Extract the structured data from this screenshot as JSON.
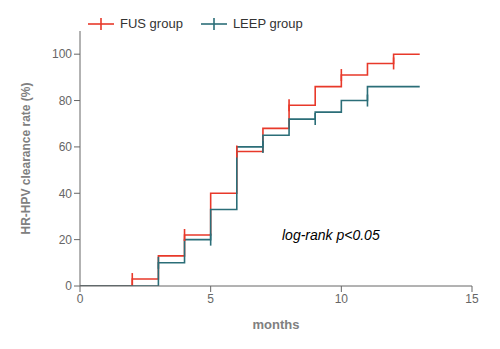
{
  "chart_data": {
    "type": "line",
    "title": "",
    "xlabel": "months",
    "ylabel": "HR-HPV clearance rate (%)",
    "xlim": [
      0,
      15
    ],
    "ylim": [
      0,
      110
    ],
    "xticks": [
      0,
      5,
      10,
      15
    ],
    "yticks": [
      0,
      20,
      40,
      60,
      80,
      100
    ],
    "grid": false,
    "legend": "upper left",
    "line_style": "step",
    "series": [
      {
        "name": "FUS group",
        "color": "#e8392a",
        "x": [
          0,
          2,
          2,
          3,
          3,
          4,
          4,
          5,
          5,
          6,
          6,
          7,
          7,
          8,
          8,
          9,
          9,
          10,
          10,
          11,
          11,
          12,
          12,
          13
        ],
        "values": [
          0,
          0,
          3,
          3,
          13,
          13,
          22,
          22,
          40,
          40,
          58,
          58,
          68,
          68,
          78,
          78,
          86,
          86,
          91,
          91,
          96,
          96,
          100,
          100
        ],
        "censor_x": [
          2,
          4,
          6,
          8,
          10,
          12
        ],
        "censor_y": [
          3,
          22,
          58,
          78,
          91,
          96
        ]
      },
      {
        "name": "LEEP group",
        "color": "#2b6e78",
        "x": [
          0,
          3,
          3,
          4,
          4,
          5,
          5,
          6,
          6,
          7,
          7,
          8,
          8,
          9,
          9,
          10,
          10,
          11,
          11,
          12,
          12,
          13
        ],
        "values": [
          0,
          0,
          10,
          10,
          20,
          20,
          33,
          33,
          60,
          60,
          65,
          65,
          72,
          72,
          75,
          75,
          80,
          80,
          86,
          86,
          86,
          86
        ],
        "censor_x": [
          3,
          5,
          7,
          9,
          11
        ],
        "censor_y": [
          10,
          20,
          60,
          72,
          80
        ]
      }
    ],
    "annotations": [
      {
        "text": "log-rank p<0.05",
        "x": 7.5,
        "y": 22
      }
    ]
  }
}
